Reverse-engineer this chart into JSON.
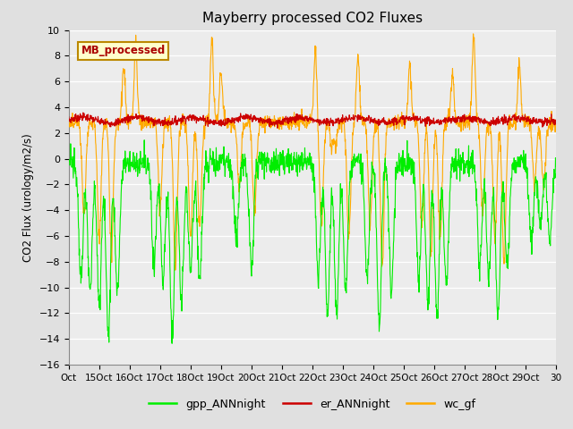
{
  "title": "Mayberry processed CO2 Fluxes",
  "ylabel": "CO2 Flux (urology/m2/s)",
  "ylim": [
    -16,
    10
  ],
  "yticks": [
    -16,
    -14,
    -12,
    -10,
    -8,
    -6,
    -4,
    -2,
    0,
    2,
    4,
    6,
    8,
    10
  ],
  "xlabels": [
    "Oct",
    "15Oct",
    "16Oct",
    "17Oct",
    "18Oct",
    "19Oct",
    "20Oct",
    "21Oct",
    "22Oct",
    "23Oct",
    "24Oct",
    "25Oct",
    "26Oct",
    "27Oct",
    "28Oct",
    "29Oct",
    "30"
  ],
  "legend_label": "MB_processed",
  "legend_box_color": "#ffffcc",
  "legend_box_edge": "#bb8800",
  "series_labels": [
    "gpp_ANNnight",
    "er_ANNnight",
    "wc_gf"
  ],
  "series_colors": [
    "#00ee00",
    "#cc0000",
    "#ffaa00"
  ],
  "background_color": "#e0e0e0",
  "plot_bg_color": "#ececec",
  "grid_color": "#ffffff",
  "n_points": 1600
}
